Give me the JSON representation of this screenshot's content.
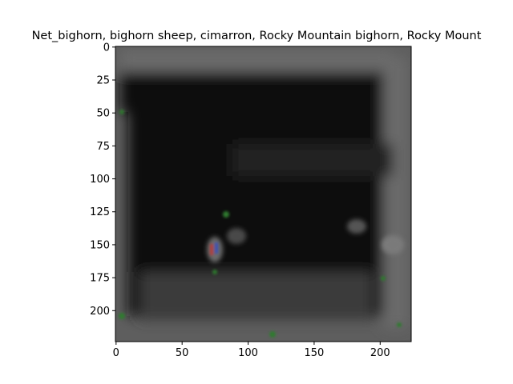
{
  "chart_data": {
    "type": "heatmap",
    "title": "Net_bighorn, bighorn sheep, cimarron, Rocky Mountain bighorn, Rocky Mount",
    "xlabel": "",
    "ylabel": "",
    "xlim": [
      0,
      224
    ],
    "ylim": [
      224,
      0
    ],
    "xticks": [
      0,
      50,
      100,
      150,
      200
    ],
    "yticks": [
      0,
      25,
      50,
      75,
      100,
      125,
      150,
      175,
      200
    ],
    "grid": false,
    "image_size": [
      224,
      224
    ],
    "colors": {
      "background": "#ffffff",
      "image_dark": "#0e0e0e",
      "image_border": "#5a5a5a",
      "spot_green": "#2f7a2f",
      "spot_red": "#b83a3a",
      "spot_blue": "#3a4fb8"
    }
  }
}
